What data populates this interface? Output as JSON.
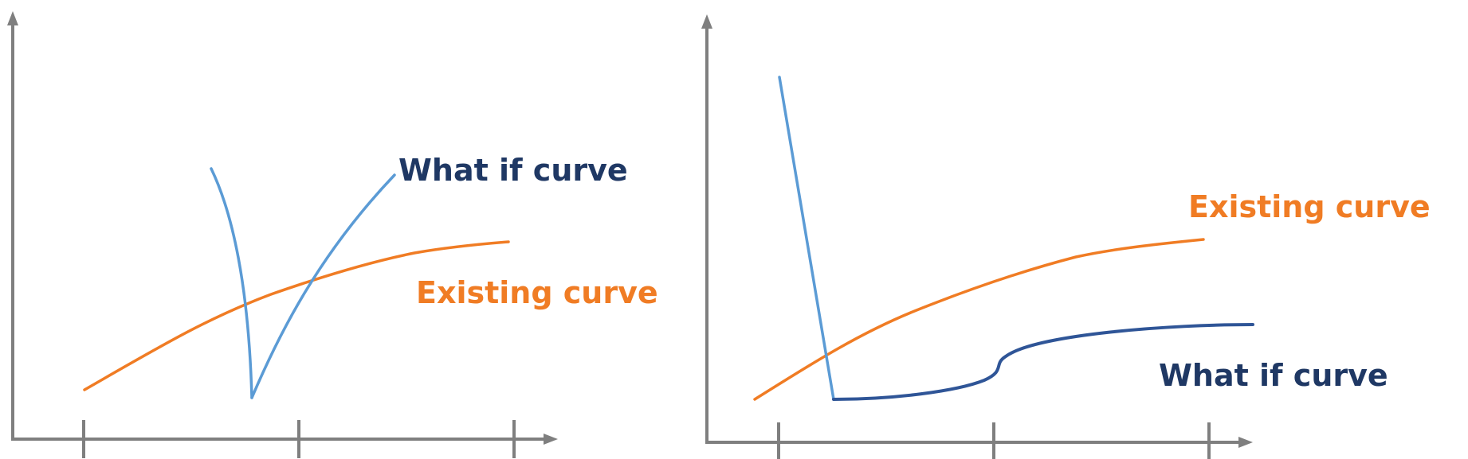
{
  "colors": {
    "axis": "#7f7f7f",
    "existing": "#f07c24",
    "whatif_light": "#5b9bd5",
    "whatif_dark": "#2f5597",
    "whatif_label": "#1f3864"
  },
  "left_panel": {
    "whatif_label": "What if curve",
    "existing_label": "Existing curve"
  },
  "right_panel": {
    "existing_label": "Existing curve",
    "whatif_label": "What if curve"
  }
}
